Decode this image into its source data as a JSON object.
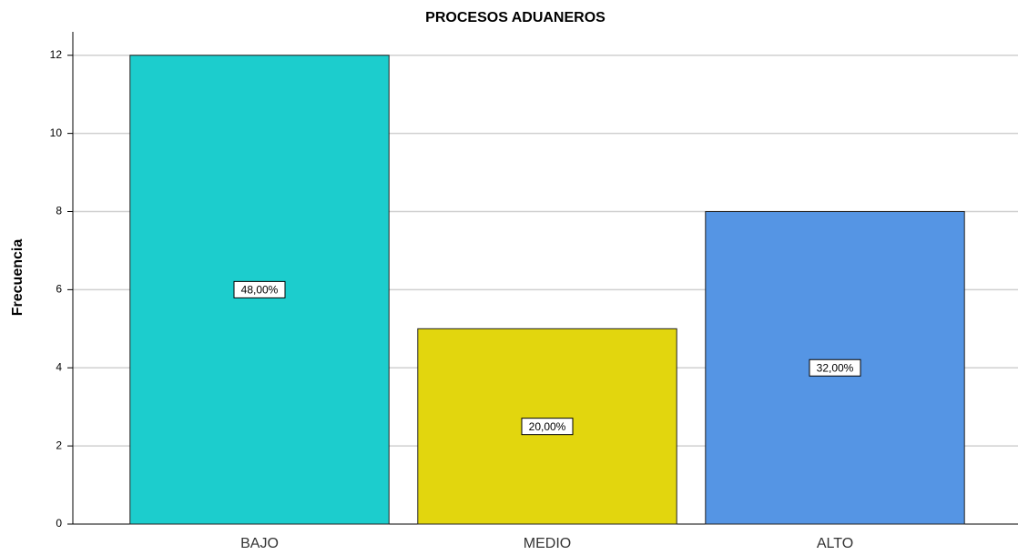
{
  "chart_data": {
    "type": "bar",
    "title": "PROCESOS ADUANEROS",
    "y_label": "Frecuencia",
    "categories": [
      "BAJO",
      "MEDIO",
      "ALTO"
    ],
    "values": [
      12,
      5,
      8
    ],
    "colors": [
      "#1ccdcd",
      "#e2d60e",
      "#5595e4"
    ],
    "percentages": [
      48,
      20,
      32
    ],
    "percentage_labels": [
      "48,00%",
      "20,00%",
      "32,00%"
    ],
    "ylim": [
      0,
      12.6
    ],
    "yticks": [
      0,
      2,
      4,
      6,
      8,
      10,
      12
    ],
    "grid": true
  }
}
